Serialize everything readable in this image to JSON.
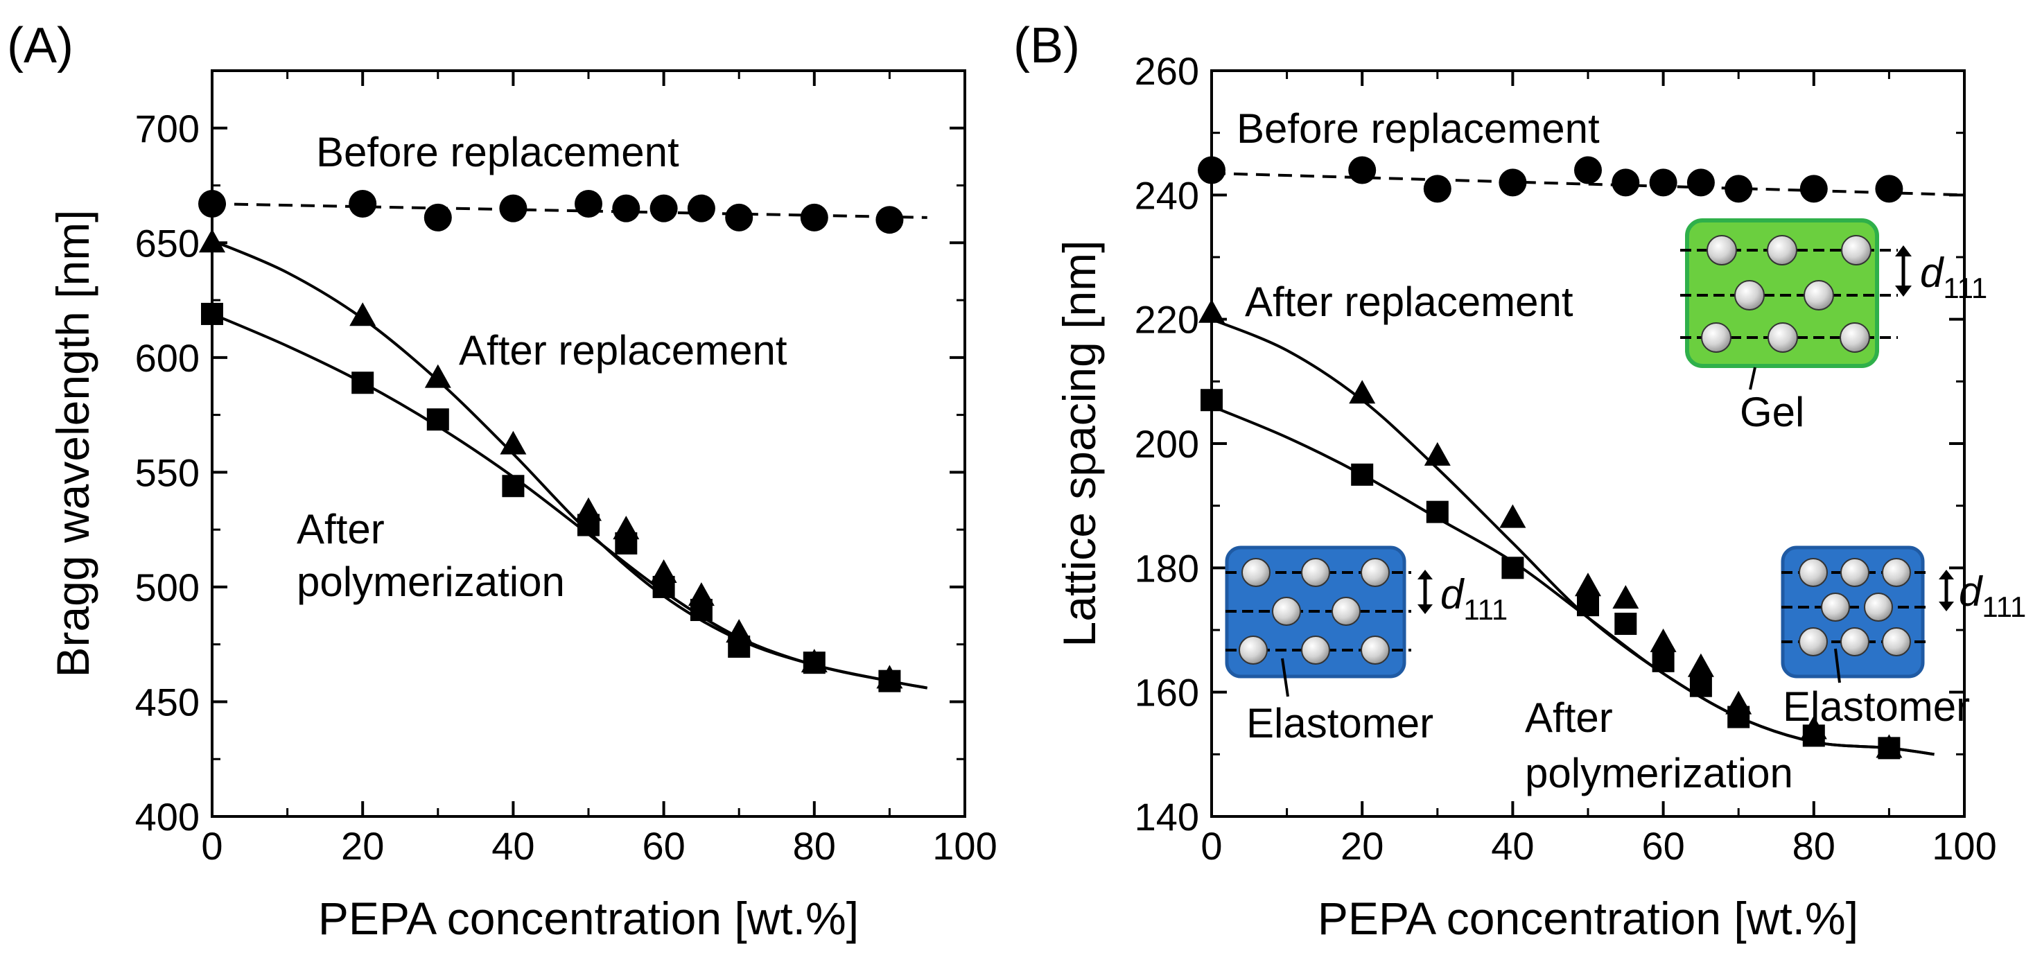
{
  "chart_data": [
    {
      "panel_label": "(A)",
      "type": "scatter",
      "xlabel": "PEPA concentration  [wt.%]",
      "ylabel": "Bragg wavelength [nm]",
      "xlim": [
        0,
        100
      ],
      "ylim": [
        400,
        725
      ],
      "x_ticks": [
        0,
        20,
        40,
        60,
        80,
        100
      ],
      "y_ticks": [
        400,
        450,
        500,
        550,
        600,
        650,
        700
      ],
      "series": [
        {
          "name": "Before replacement",
          "marker": "circle",
          "x": [
            0,
            20,
            30,
            40,
            50,
            55,
            60,
            65,
            70,
            80,
            90
          ],
          "y": [
            667,
            667,
            661,
            665,
            667,
            665,
            665,
            665,
            661,
            661,
            660
          ],
          "fit": "dashed",
          "fit_x": [
            0,
            95
          ],
          "fit_y": [
            667,
            661
          ]
        },
        {
          "name": "After replacement",
          "marker": "triangle",
          "x": [
            0,
            20,
            30,
            40,
            50,
            55,
            60,
            65,
            70,
            80,
            90
          ],
          "y": [
            650,
            618,
            591,
            562,
            533,
            525,
            506,
            496,
            480,
            467,
            460
          ],
          "fit": "solid",
          "fit_x": [
            0,
            10,
            20,
            30,
            40,
            50,
            60,
            70,
            80,
            90,
            95
          ],
          "fit_y": [
            651,
            637,
            617,
            590,
            558,
            524,
            496,
            477,
            466,
            459,
            456
          ]
        },
        {
          "name": "After polymerization",
          "marker": "square",
          "x": [
            0,
            20,
            30,
            40,
            50,
            55,
            60,
            65,
            70,
            80,
            90
          ],
          "y": [
            619,
            589,
            573,
            544,
            527,
            519,
            500,
            490,
            474,
            467,
            459
          ],
          "fit": "solid",
          "fit_x": [
            0,
            10,
            20,
            30,
            40,
            50,
            60,
            70,
            80,
            90,
            95
          ],
          "fit_y": [
            619,
            605,
            589,
            570,
            548,
            523,
            498,
            478,
            466,
            459,
            456
          ]
        }
      ],
      "annotations": [
        "Before replacement",
        "After replacement",
        "After",
        "polymerization"
      ]
    },
    {
      "panel_label": "(B)",
      "type": "scatter",
      "xlabel": "PEPA concentration  [wt.%]",
      "ylabel": "Lattice spacing [nm]",
      "xlim": [
        0,
        100
      ],
      "ylim": [
        140,
        260
      ],
      "x_ticks": [
        0,
        20,
        40,
        60,
        80,
        100
      ],
      "y_ticks": [
        140,
        160,
        180,
        200,
        220,
        240,
        260
      ],
      "series": [
        {
          "name": "Before replacement",
          "marker": "circle",
          "x": [
            0,
            20,
            30,
            40,
            50,
            55,
            60,
            65,
            70,
            80,
            90
          ],
          "y": [
            244,
            244,
            241,
            242,
            244,
            242,
            242,
            242,
            241,
            241,
            241
          ],
          "fit": "dashed",
          "fit_x": [
            0,
            100
          ],
          "fit_y": [
            243.5,
            240
          ]
        },
        {
          "name": "After replacement",
          "marker": "triangle",
          "x": [
            0,
            20,
            30,
            40,
            50,
            55,
            60,
            65,
            70,
            80,
            90
          ],
          "y": [
            221,
            208,
            198,
            188,
            177,
            175,
            168,
            164,
            158,
            154,
            151
          ],
          "fit": "solid",
          "fit_x": [
            0,
            10,
            20,
            30,
            40,
            50,
            60,
            70,
            80,
            90,
            96
          ],
          "fit_y": [
            220,
            215,
            207,
            196,
            184,
            172,
            163,
            156,
            152,
            151,
            150
          ]
        },
        {
          "name": "After polymerization",
          "marker": "square",
          "x": [
            0,
            20,
            30,
            40,
            50,
            55,
            60,
            65,
            70,
            80,
            90
          ],
          "y": [
            207,
            195,
            189,
            180,
            174,
            171,
            165,
            161,
            156,
            153,
            151
          ],
          "fit": "solid",
          "fit_x": [
            0,
            10,
            20,
            30,
            40,
            50,
            60,
            70,
            80,
            90,
            96
          ],
          "fit_y": [
            206,
            201,
            195,
            188,
            181,
            172,
            163,
            156,
            152,
            151,
            150
          ]
        }
      ],
      "annotations": [
        "Before replacement",
        "After replacement",
        "After",
        "polymerization"
      ],
      "insets": [
        {
          "label": "Gel",
          "color": "#6bcf3f",
          "spacing_label": "d",
          "spacing_subscript": "111"
        },
        {
          "label": "Elastomer",
          "color": "#2b73c8",
          "spacing_label": "d",
          "spacing_subscript": "111"
        },
        {
          "label": "Elastomer",
          "color": "#2b73c8",
          "spacing_label": "d",
          "spacing_subscript": "111"
        }
      ]
    }
  ]
}
